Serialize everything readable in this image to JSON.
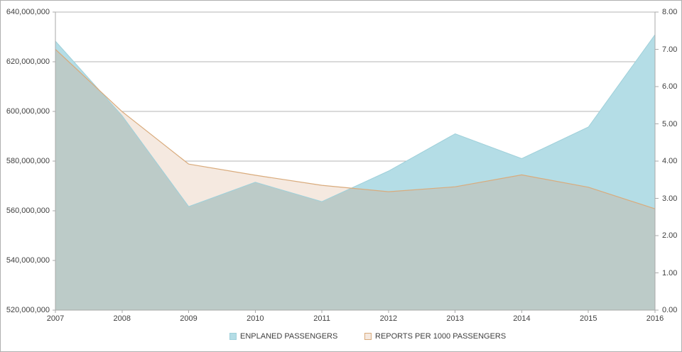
{
  "chart_data": {
    "type": "area",
    "title": "",
    "xlabel": "",
    "ylabel_left": "",
    "ylabel_right": "",
    "grid": true,
    "legend_position": "bottom",
    "categories": [
      2007,
      2008,
      2009,
      2010,
      2011,
      2012,
      2013,
      2014,
      2015,
      2016
    ],
    "series": [
      {
        "name": "ENPLANED PASSENGERS",
        "axis": "left",
        "fill": "#b4dde6",
        "stroke": "#9fd0da",
        "values": [
          628300000,
          598300000,
          561700000,
          571500000,
          563700000,
          576000000,
          591000000,
          581000000,
          593700000,
          630900000
        ]
      },
      {
        "name": "REPORTS PER 1000 PASSENGERS",
        "axis": "right",
        "fill": "#f5e9e0",
        "stroke": "#d9ab7c",
        "values": [
          7.0,
          5.33,
          3.92,
          3.62,
          3.35,
          3.18,
          3.31,
          3.63,
          3.3,
          2.72
        ]
      }
    ],
    "left_axis": {
      "min": 520000000,
      "max": 640000000,
      "step": 20000000,
      "labels": [
        "640,000,000",
        "620,000,000",
        "600,000,000",
        "580,000,000",
        "560,000,000",
        "540,000,000",
        "520,000,000"
      ]
    },
    "right_axis": {
      "min": 0,
      "max": 8,
      "step": 1,
      "labels": [
        "8.00",
        "7.00",
        "6.00",
        "5.00",
        "4.00",
        "3.00",
        "2.00",
        "1.00",
        "0.00"
      ]
    },
    "colors": {
      "overlap": "#bccbc8",
      "grid": "#b4b4b4",
      "axis": "#a9a9a9",
      "text": "#3f3f3f",
      "background": "#ffffff",
      "border": "#b0b0b0"
    }
  }
}
